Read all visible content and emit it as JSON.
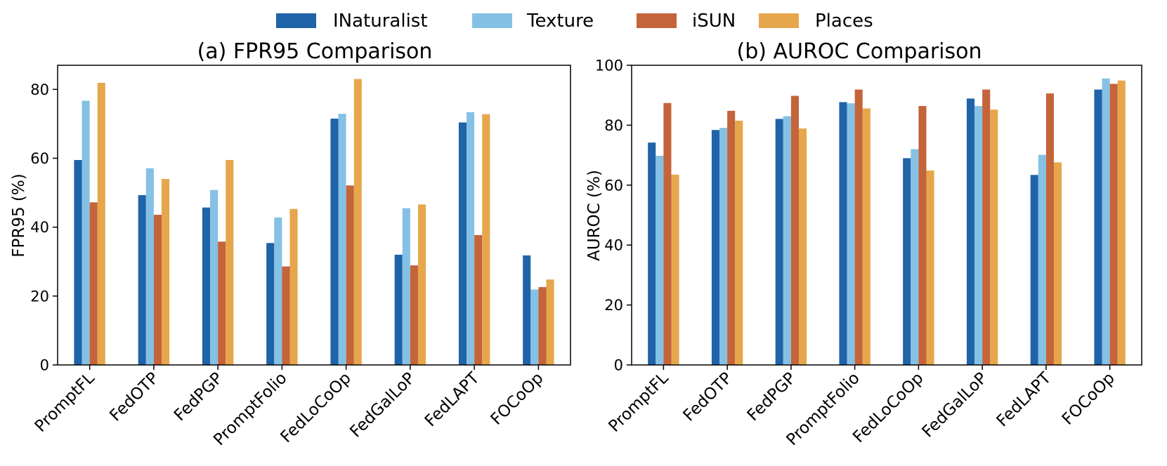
{
  "colors": {
    "INaturalist": "#1f63a8",
    "Texture": "#85c1e5",
    "iSUN": "#c4643a",
    "Places": "#e6a74c"
  },
  "legend": {
    "entries": [
      "INaturalist",
      "Texture",
      "iSUN",
      "Places"
    ],
    "placement": "top-center"
  },
  "chart_data": [
    {
      "type": "bar",
      "title": "(a)  FPR95 Comparison",
      "xlabel": "",
      "ylabel": "FPR95 (%)",
      "ylim": [
        0,
        87
      ],
      "yticks": [
        0,
        20,
        40,
        60,
        80
      ],
      "categories": [
        "PromptFL",
        "FedOTP",
        "FedPGP",
        "PromptFolio",
        "FedLoCoOp",
        "FedGalLoP",
        "FedLAPT",
        "FOCoOp"
      ],
      "series": [
        {
          "name": "INaturalist",
          "values": [
            59.5,
            49.3,
            45.7,
            35.4,
            71.5,
            32.0,
            70.4,
            31.8
          ]
        },
        {
          "name": "Texture",
          "values": [
            76.7,
            57.1,
            50.8,
            42.8,
            72.9,
            45.5,
            73.4,
            21.9
          ]
        },
        {
          "name": "iSUN",
          "values": [
            47.2,
            43.6,
            35.8,
            28.6,
            52.1,
            28.9,
            37.7,
            22.6
          ]
        },
        {
          "name": "Places",
          "values": [
            81.9,
            54.0,
            59.5,
            45.3,
            83.0,
            46.6,
            72.8,
            24.8
          ]
        }
      ]
    },
    {
      "type": "bar",
      "title": "(b) AUROC Comparison",
      "xlabel": "",
      "ylabel": "AUROC (%)",
      "ylim": [
        0,
        100
      ],
      "yticks": [
        0,
        20,
        40,
        60,
        80,
        100
      ],
      "categories": [
        "PromptFL",
        "FedOTP",
        "FedPGP",
        "PromptFolio",
        "FedLoCoOp",
        "FedGalLoP",
        "FedLAPT",
        "FOCoOp"
      ],
      "series": [
        {
          "name": "INaturalist",
          "values": [
            74.2,
            78.4,
            82.1,
            87.7,
            69.0,
            88.9,
            63.4,
            91.9
          ]
        },
        {
          "name": "Texture",
          "values": [
            69.8,
            79.1,
            83.0,
            87.3,
            72.0,
            86.4,
            70.1,
            95.6
          ]
        },
        {
          "name": "iSUN",
          "values": [
            87.4,
            84.8,
            89.8,
            91.9,
            86.4,
            91.9,
            90.6,
            93.8
          ]
        },
        {
          "name": "Places",
          "values": [
            63.5,
            81.5,
            78.9,
            85.6,
            64.9,
            85.2,
            67.6,
            94.9
          ]
        }
      ]
    }
  ]
}
